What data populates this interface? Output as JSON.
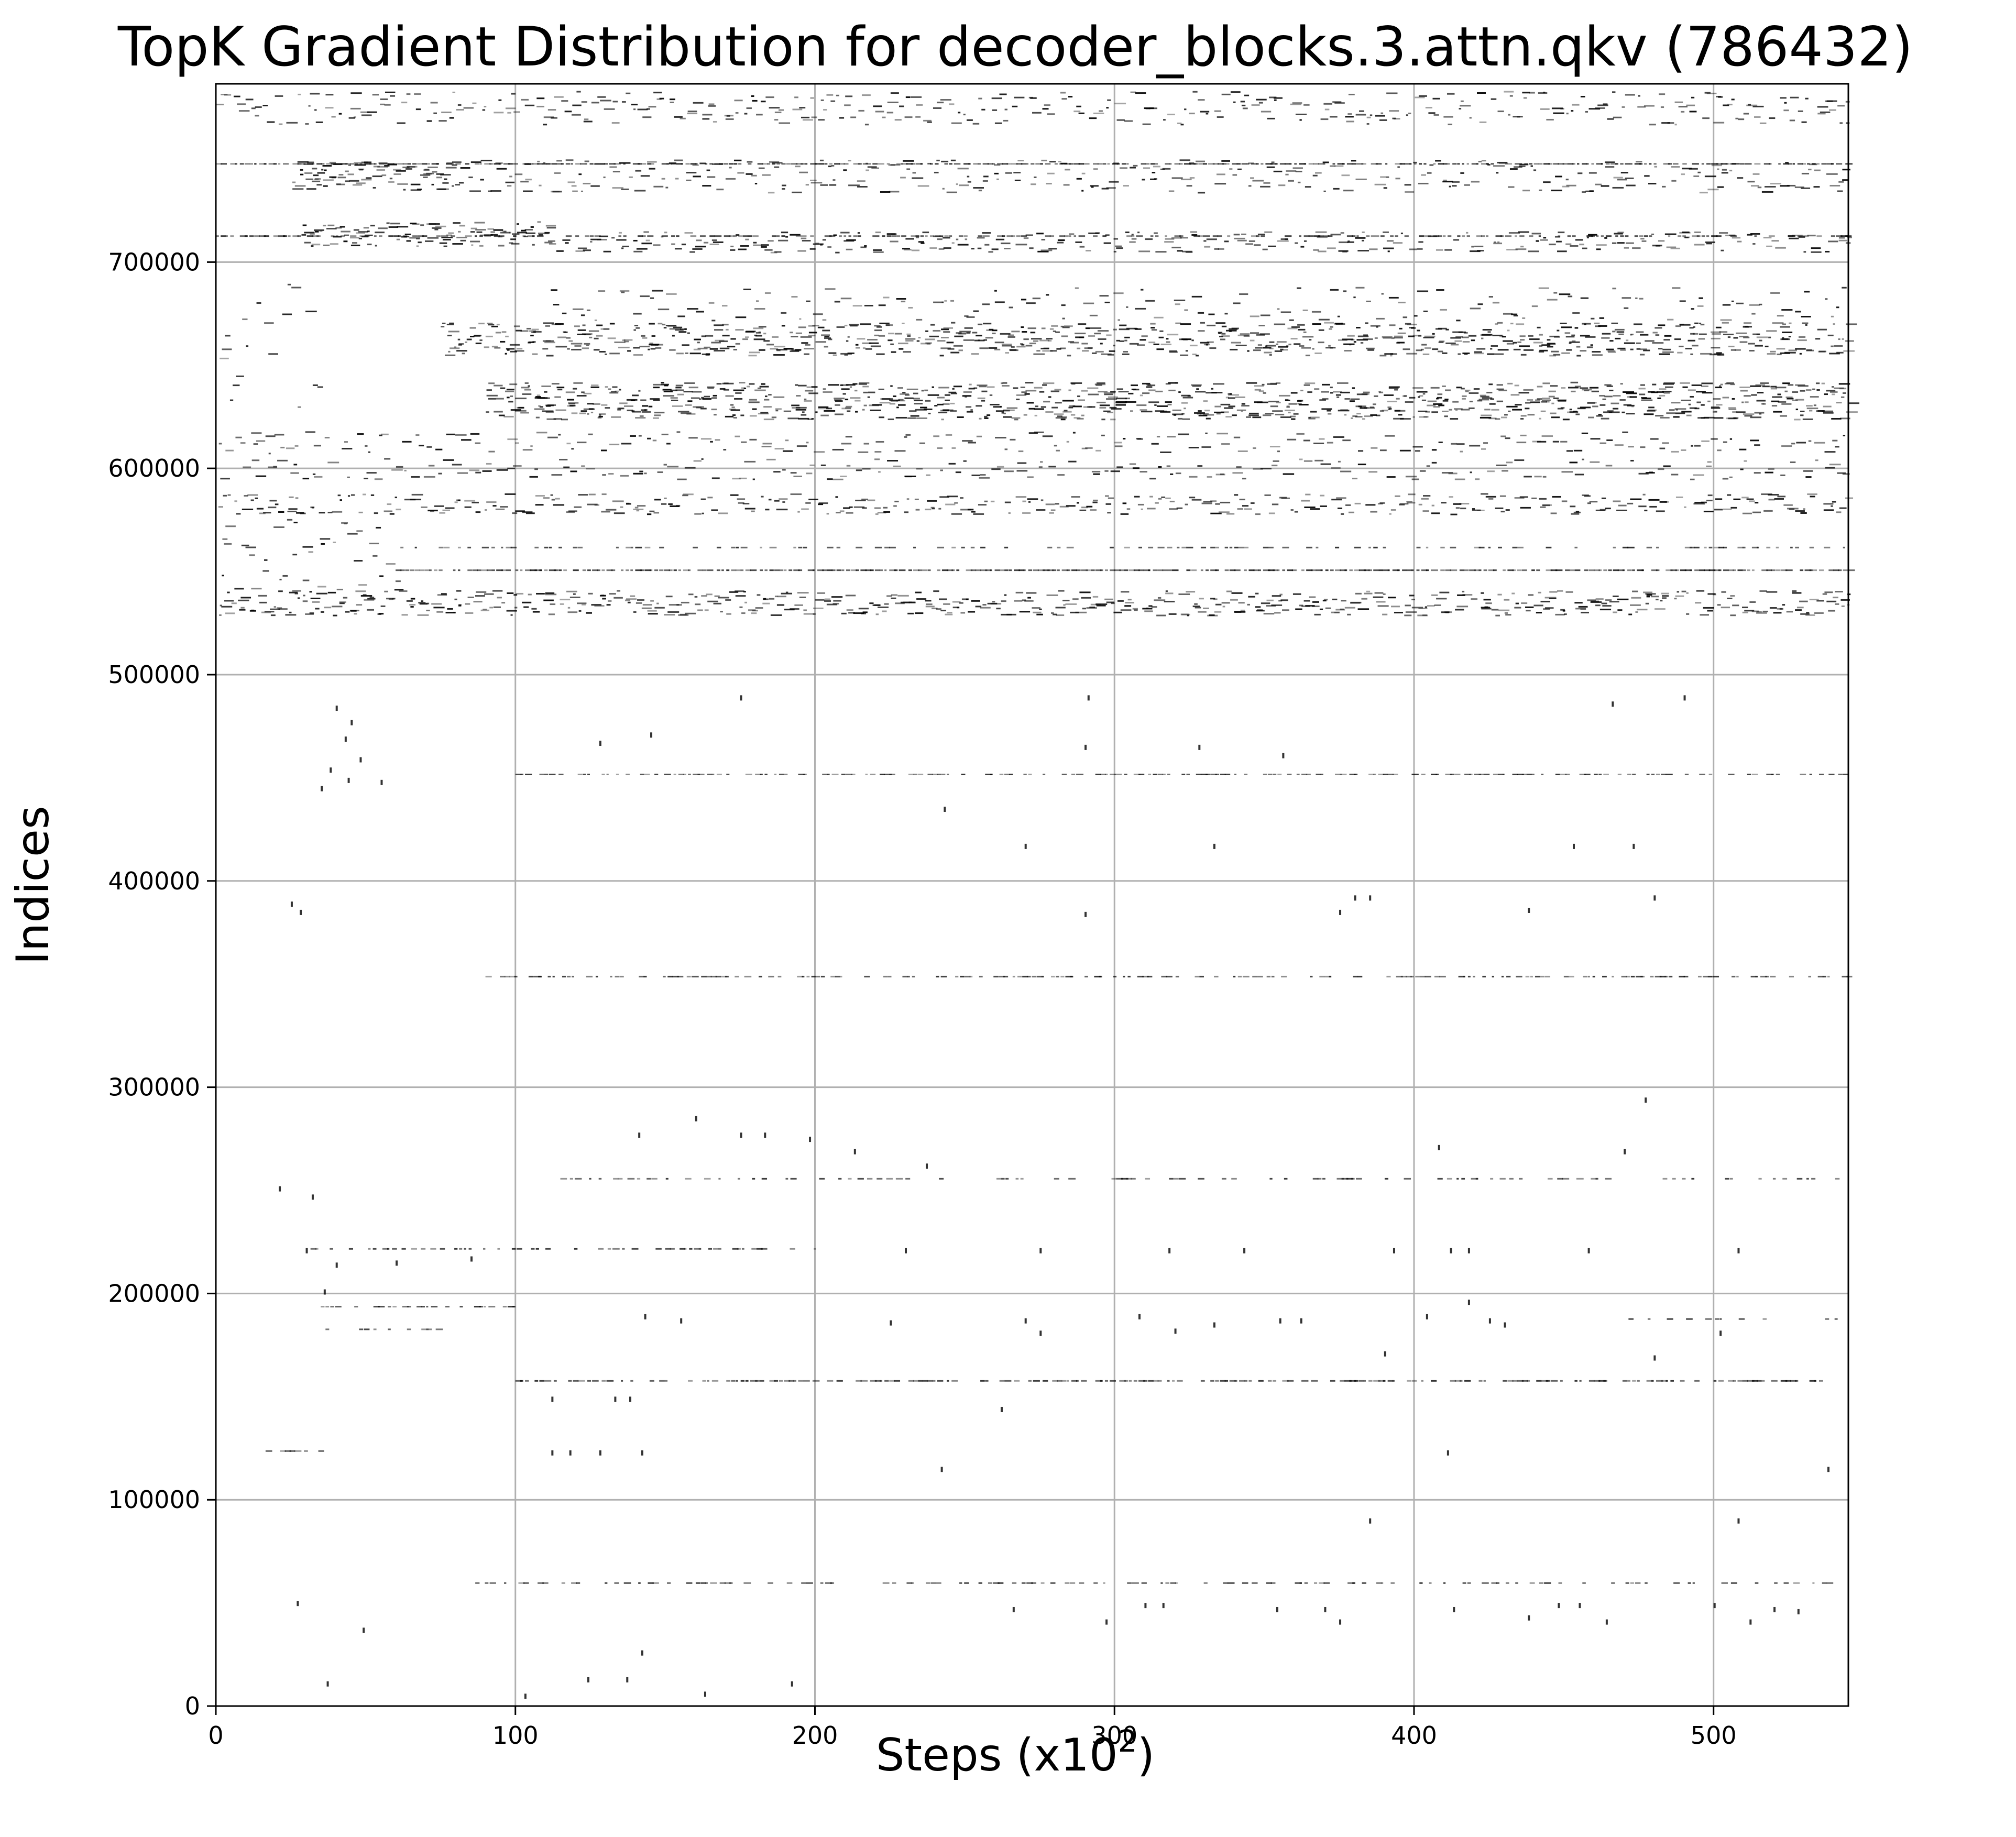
{
  "chart_data": {
    "type": "scatter",
    "title": "TopK Gradient Distribution for decoder_blocks.3.attn.qkv (786432)",
    "xlabel": "Steps (x10",
    "xlabel_sup": "2",
    "xlabel_suffix": ")",
    "ylabel": "Indices",
    "xlim": [
      0,
      545
    ],
    "ylim": [
      0,
      786432
    ],
    "x_ticks": [
      0,
      100,
      200,
      300,
      400,
      500
    ],
    "y_ticks": [
      0,
      100000,
      200000,
      300000,
      400000,
      500000,
      600000,
      700000
    ],
    "x_tick_labels": [
      "0",
      "100",
      "200",
      "300",
      "400",
      "500"
    ],
    "y_tick_labels": [
      "0",
      "100000",
      "200000",
      "300000",
      "400000",
      "500000",
      "600000",
      "700000"
    ],
    "grid": true,
    "marker_color": "#000000",
    "grid_color": "#b0b0b0",
    "bands": [
      {
        "y_center": 633000,
        "y_spread": 9000,
        "x_range": [
          90,
          545
        ],
        "density": 0.95
      },
      {
        "y_center": 663000,
        "y_spread": 8000,
        "x_range": [
          75,
          545
        ],
        "density": 0.85
      },
      {
        "y_center": 742000,
        "y_spread": 7000,
        "x_range": [
          25,
          80
        ],
        "density": 0.8
      },
      {
        "y_center": 714000,
        "y_spread": 6000,
        "x_range": [
          28,
          110
        ],
        "density": 0.7
      },
      {
        "y_center": 535000,
        "y_spread": 6000,
        "x_range": [
          0,
          545
        ],
        "density": 0.55
      },
      {
        "y_center": 583000,
        "y_spread": 5000,
        "x_range": [
          0,
          545
        ],
        "density": 0.35
      },
      {
        "y_center": 742000,
        "y_spread": 8000,
        "x_range": [
          80,
          545
        ],
        "density": 0.4
      },
      {
        "y_center": 775000,
        "y_spread": 8000,
        "x_range": [
          0,
          545
        ],
        "density": 0.3
      },
      {
        "y_center": 710000,
        "y_spread": 5000,
        "x_range": [
          110,
          545
        ],
        "density": 0.25
      },
      {
        "y_center": 560000,
        "y_spread": 20000,
        "x_range": [
          0,
          60
        ],
        "density": 0.35
      },
      {
        "y_center": 650000,
        "y_spread": 45000,
        "x_range": [
          0,
          35
        ],
        "density": 0.35
      },
      {
        "y_center": 680000,
        "y_spread": 8000,
        "x_range": [
          110,
          545
        ],
        "density": 0.2
      },
      {
        "y_center": 613000,
        "y_spread": 5000,
        "x_range": [
          0,
          545
        ],
        "density": 0.2
      },
      {
        "y_center": 600000,
        "y_spread": 5000,
        "x_range": [
          0,
          545
        ],
        "density": 0.12
      }
    ],
    "lines": [
      {
        "y": 748000,
        "x_range": [
          0,
          545
        ],
        "density": 0.9
      },
      {
        "y": 713000,
        "x_range": [
          0,
          545
        ],
        "density": 0.6
      },
      {
        "y": 551000,
        "x_range": [
          60,
          545
        ],
        "density": 0.9
      },
      {
        "y": 562000,
        "x_range": [
          60,
          545
        ],
        "density": 0.35
      },
      {
        "y": 452000,
        "x_range": [
          100,
          545
        ],
        "density": 0.55
      },
      {
        "y": 354000,
        "x_range": [
          90,
          545
        ],
        "density": 0.6
      },
      {
        "y": 256000,
        "x_range": [
          115,
          545
        ],
        "density": 0.35
      },
      {
        "y": 222000,
        "x_range": [
          30,
          205
        ],
        "density": 0.4
      },
      {
        "y": 194000,
        "x_range": [
          35,
          100
        ],
        "density": 0.6
      },
      {
        "y": 158000,
        "x_range": [
          100,
          540
        ],
        "density": 0.65
      },
      {
        "y": 60000,
        "x_range": [
          85,
          545
        ],
        "density": 0.35
      },
      {
        "y": 124000,
        "x_range": [
          15,
          35
        ],
        "density": 0.3
      },
      {
        "y": 183000,
        "x_range": [
          35,
          75
        ],
        "density": 0.25
      },
      {
        "y": 188000,
        "x_range": [
          470,
          545
        ],
        "density": 0.25
      }
    ],
    "sparse_points": [
      {
        "x": 45,
        "y": 478000
      },
      {
        "x": 40,
        "y": 485000
      },
      {
        "x": 43,
        "y": 470000
      },
      {
        "x": 38,
        "y": 455000
      },
      {
        "x": 44,
        "y": 450000
      },
      {
        "x": 48,
        "y": 460000
      },
      {
        "x": 55,
        "y": 449000
      },
      {
        "x": 35,
        "y": 446000
      },
      {
        "x": 25,
        "y": 390000
      },
      {
        "x": 28,
        "y": 386000
      },
      {
        "x": 21,
        "y": 252000
      },
      {
        "x": 32,
        "y": 248000
      },
      {
        "x": 36,
        "y": 202000
      },
      {
        "x": 40,
        "y": 215000
      },
      {
        "x": 60,
        "y": 216000
      },
      {
        "x": 85,
        "y": 218000
      },
      {
        "x": 128,
        "y": 468000
      },
      {
        "x": 145,
        "y": 472000
      },
      {
        "x": 175,
        "y": 490000
      },
      {
        "x": 243,
        "y": 436000
      },
      {
        "x": 270,
        "y": 418000
      },
      {
        "x": 290,
        "y": 466000
      },
      {
        "x": 291,
        "y": 490000
      },
      {
        "x": 328,
        "y": 466000
      },
      {
        "x": 333,
        "y": 418000
      },
      {
        "x": 356,
        "y": 462000
      },
      {
        "x": 380,
        "y": 393000
      },
      {
        "x": 385,
        "y": 393000
      },
      {
        "x": 375,
        "y": 386000
      },
      {
        "x": 290,
        "y": 385000
      },
      {
        "x": 438,
        "y": 387000
      },
      {
        "x": 453,
        "y": 418000
      },
      {
        "x": 466,
        "y": 487000
      },
      {
        "x": 473,
        "y": 418000
      },
      {
        "x": 480,
        "y": 393000
      },
      {
        "x": 490,
        "y": 490000
      },
      {
        "x": 470,
        "y": 270000
      },
      {
        "x": 477,
        "y": 295000
      },
      {
        "x": 408,
        "y": 272000
      },
      {
        "x": 160,
        "y": 286000
      },
      {
        "x": 141,
        "y": 278000
      },
      {
        "x": 175,
        "y": 278000
      },
      {
        "x": 183,
        "y": 278000
      },
      {
        "x": 213,
        "y": 270000
      },
      {
        "x": 198,
        "y": 276000
      },
      {
        "x": 237,
        "y": 263000
      },
      {
        "x": 143,
        "y": 190000
      },
      {
        "x": 155,
        "y": 188000
      },
      {
        "x": 225,
        "y": 187000
      },
      {
        "x": 270,
        "y": 188000
      },
      {
        "x": 275,
        "y": 182000
      },
      {
        "x": 308,
        "y": 190000
      },
      {
        "x": 320,
        "y": 183000
      },
      {
        "x": 333,
        "y": 186000
      },
      {
        "x": 355,
        "y": 188000
      },
      {
        "x": 362,
        "y": 188000
      },
      {
        "x": 390,
        "y": 172000
      },
      {
        "x": 404,
        "y": 190000
      },
      {
        "x": 418,
        "y": 197000
      },
      {
        "x": 425,
        "y": 188000
      },
      {
        "x": 430,
        "y": 186000
      },
      {
        "x": 480,
        "y": 170000
      },
      {
        "x": 502,
        "y": 182000
      },
      {
        "x": 262,
        "y": 145000
      },
      {
        "x": 112,
        "y": 150000
      },
      {
        "x": 133,
        "y": 150000
      },
      {
        "x": 138,
        "y": 150000
      },
      {
        "x": 112,
        "y": 124000
      },
      {
        "x": 118,
        "y": 124000
      },
      {
        "x": 128,
        "y": 124000
      },
      {
        "x": 142,
        "y": 124000
      },
      {
        "x": 242,
        "y": 116000
      },
      {
        "x": 411,
        "y": 124000
      },
      {
        "x": 538,
        "y": 116000
      },
      {
        "x": 385,
        "y": 91000
      },
      {
        "x": 508,
        "y": 91000
      },
      {
        "x": 27,
        "y": 51000
      },
      {
        "x": 49,
        "y": 38000
      },
      {
        "x": 37,
        "y": 12000
      },
      {
        "x": 103,
        "y": 6000
      },
      {
        "x": 124,
        "y": 14000
      },
      {
        "x": 137,
        "y": 14000
      },
      {
        "x": 142,
        "y": 27000
      },
      {
        "x": 163,
        "y": 7000
      },
      {
        "x": 192,
        "y": 12000
      },
      {
        "x": 266,
        "y": 48000
      },
      {
        "x": 297,
        "y": 42000
      },
      {
        "x": 310,
        "y": 50000
      },
      {
        "x": 316,
        "y": 50000
      },
      {
        "x": 354,
        "y": 48000
      },
      {
        "x": 370,
        "y": 48000
      },
      {
        "x": 375,
        "y": 42000
      },
      {
        "x": 413,
        "y": 48000
      },
      {
        "x": 438,
        "y": 44000
      },
      {
        "x": 448,
        "y": 50000
      },
      {
        "x": 455,
        "y": 50000
      },
      {
        "x": 464,
        "y": 42000
      },
      {
        "x": 500,
        "y": 50000
      },
      {
        "x": 512,
        "y": 42000
      },
      {
        "x": 520,
        "y": 48000
      },
      {
        "x": 528,
        "y": 47000
      },
      {
        "x": 30,
        "y": 222000
      },
      {
        "x": 230,
        "y": 222000
      },
      {
        "x": 275,
        "y": 222000
      },
      {
        "x": 318,
        "y": 222000
      },
      {
        "x": 343,
        "y": 222000
      },
      {
        "x": 393,
        "y": 222000
      },
      {
        "x": 412,
        "y": 222000
      },
      {
        "x": 418,
        "y": 222000
      },
      {
        "x": 458,
        "y": 222000
      },
      {
        "x": 508,
        "y": 222000
      }
    ]
  }
}
